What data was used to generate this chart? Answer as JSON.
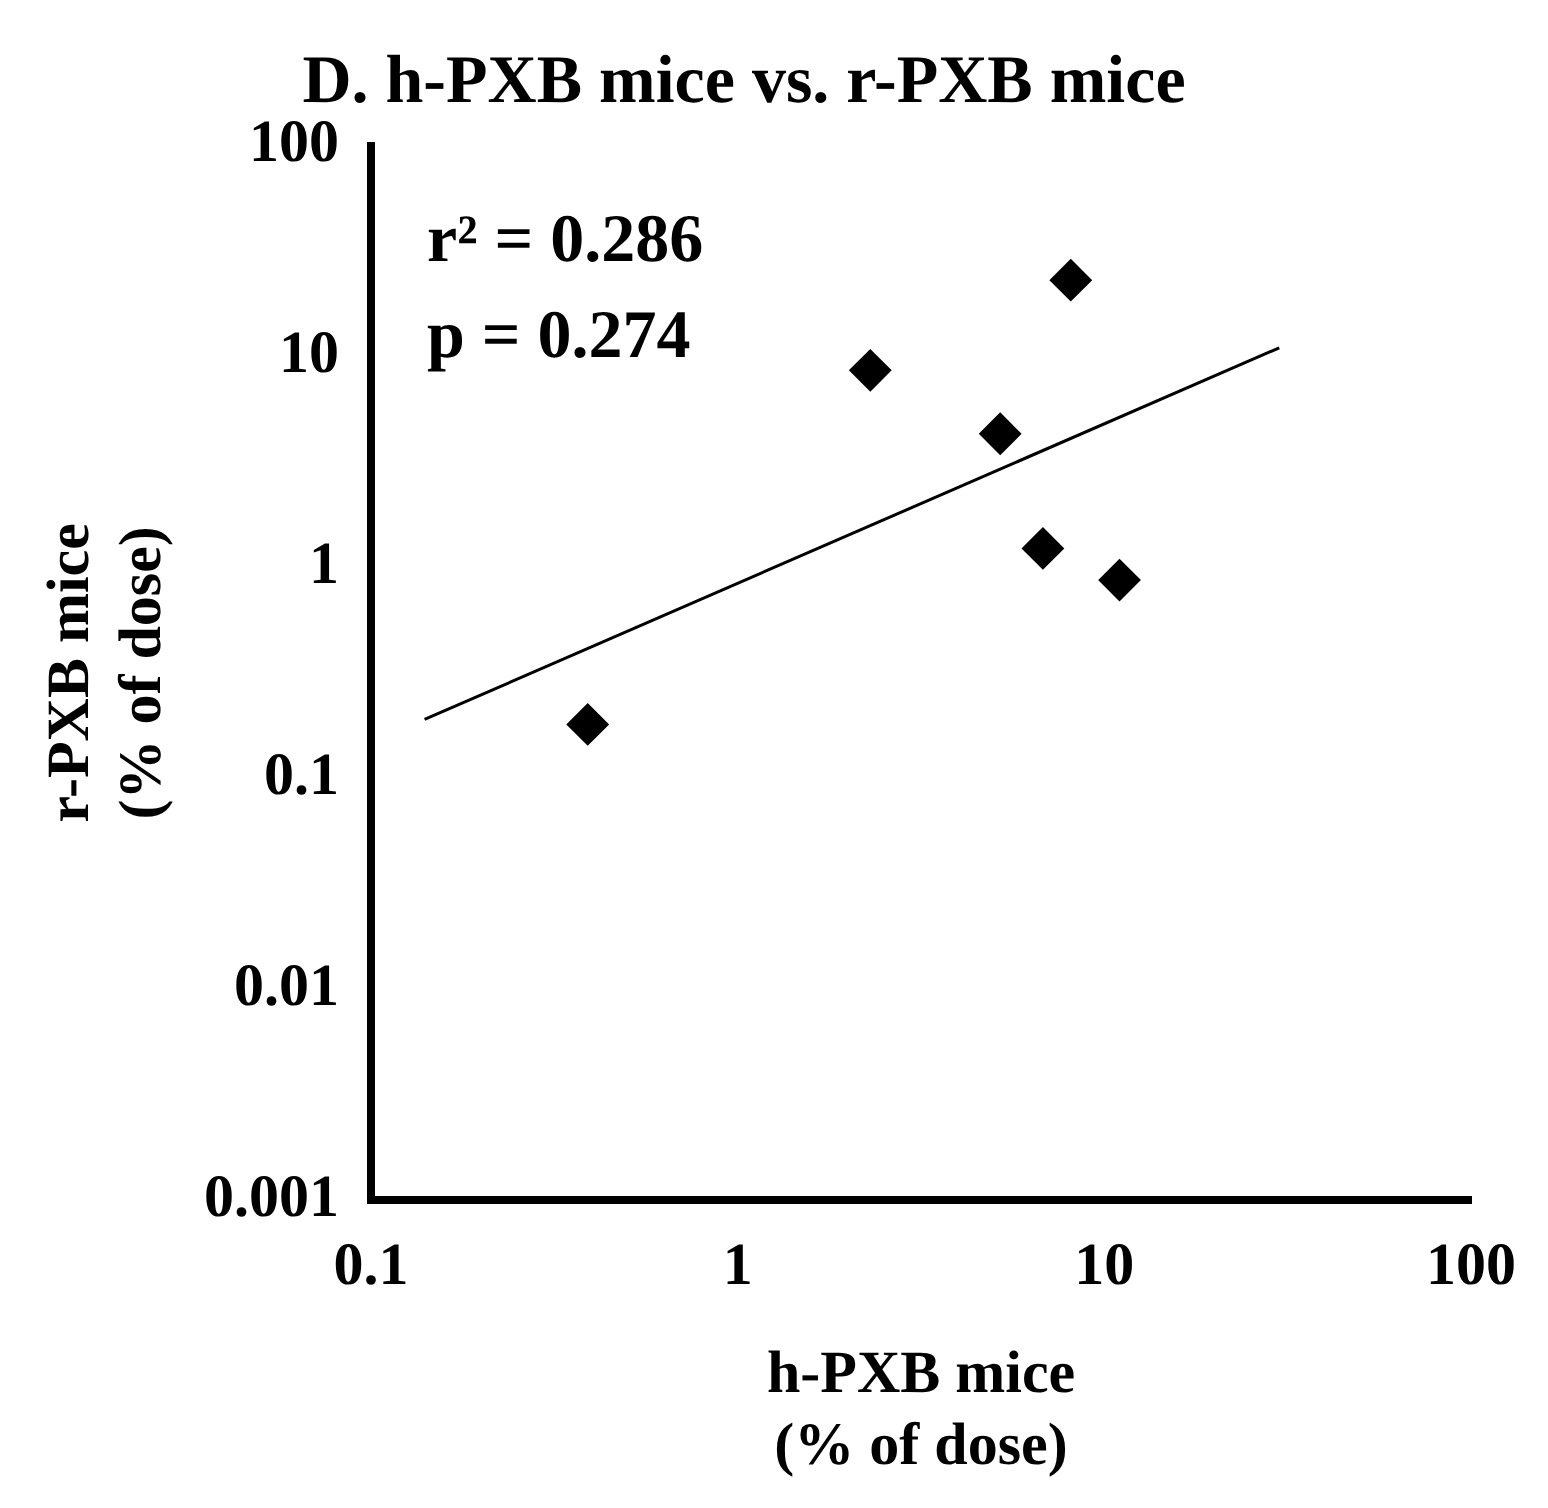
{
  "chart_data": {
    "type": "scatter",
    "title": "D. h-PXB mice vs. r-PXB mice",
    "xlabel": "h-PXB mice\n(% of dose)",
    "ylabel": "r-PXB mice\n(% of dose)",
    "annotations": [
      "r² = 0.286",
      "p = 0.274"
    ],
    "log": "xy",
    "grid": false,
    "legend": false,
    "marker": "diamond",
    "xlim": [
      0.1,
      100
    ],
    "xticks": [
      0.1,
      1,
      10,
      100
    ],
    "ylim": [
      0.001,
      100
    ],
    "yticks": [
      0.001,
      0.01,
      0.1,
      1,
      10,
      100
    ],
    "series": [
      {
        "type": "scatter",
        "color": "#000000",
        "x": [
          0.39,
          2.3,
          8.1,
          5.2,
          6.8,
          11
        ],
        "values": [
          0.18,
          8.6,
          23,
          4.3,
          1.23,
          0.87
        ]
      },
      {
        "type": "line",
        "color": "#000000",
        "marker": "none",
        "line_style": "solid",
        "x": [
          0.14,
          30
        ],
        "values": [
          0.19,
          11
        ]
      }
    ]
  }
}
